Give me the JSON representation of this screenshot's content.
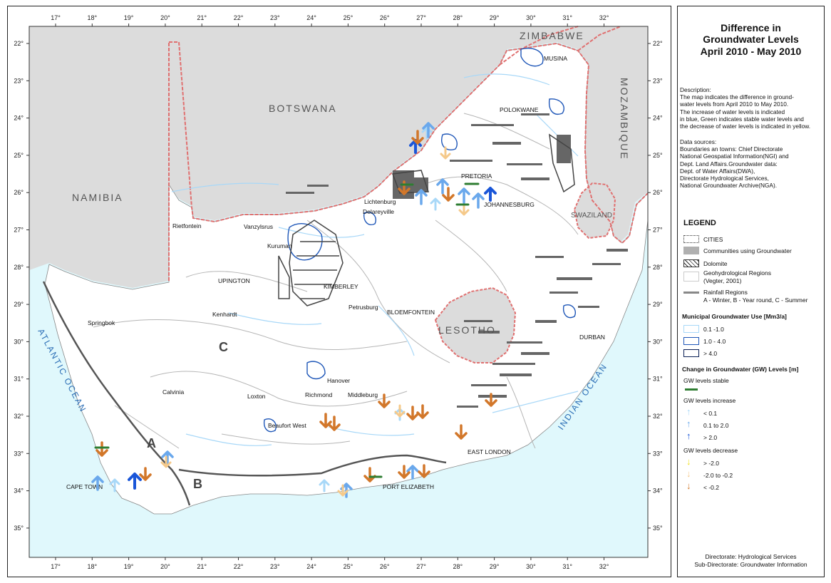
{
  "map": {
    "longitude_ticks": [
      "17°",
      "18°",
      "19°",
      "20°",
      "21°",
      "22°",
      "23°",
      "24°",
      "25°",
      "26°",
      "27°",
      "28°",
      "29°",
      "30°",
      "31°",
      "32°"
    ],
    "latitude_ticks": [
      "22°",
      "23°",
      "24°",
      "25°",
      "26°",
      "27°",
      "28°",
      "29°",
      "30°",
      "31°",
      "32°",
      "33°",
      "34°",
      "35°"
    ],
    "countries": {
      "zimbabwe": "ZIMBABWE",
      "botswana": "BOTSWANA",
      "namibia": "NAMIBIA",
      "mozambique": "MOZAMBIQUE",
      "swaziland": "SWAZILAND",
      "lesotho": "LESOTHO"
    },
    "oceans": {
      "atlantic": "ATLANTIC OCEAN",
      "indian": "INDIAN OCEAN"
    },
    "rainfall_regions": {
      "a": "A",
      "b": "B",
      "c": "C"
    },
    "cities": {
      "musina": "MUSINA",
      "polokwane": "POLOKWANE",
      "pretoria": "PRETORIA",
      "johannesburg": "JOHANNESBURG",
      "lichtenburg": "Lichtenburg",
      "delareyville": "Delareyville",
      "rietfontein": "Rietfontein",
      "vanzylsrus": "Vanzylsrus",
      "kuruman": "Kuruman",
      "upington": "UPINGTON",
      "kimberley": "KIMBERLEY",
      "petrusburg": "Petrusburg",
      "bloemfontein": "BLOEMFONTEIN",
      "kenhardt": "Kenhardt",
      "springbok": "Springbok",
      "durban": "DURBAN",
      "hanover": "Hanover",
      "calvinia": "Calvinia",
      "loxton": "Loxton",
      "richmond": "Richmond",
      "middleburg": "Middleburg",
      "beaufort_west": "Beaufort West",
      "east_london": "EAST LONDON",
      "cape_town": "CAPE TOWN",
      "port_elizabeth": "PORT ELIZABETH"
    },
    "colors": {
      "land": "#ffffff",
      "sea": "#e0f8fc",
      "neighbour": "#dcdcdc",
      "border": "#e07070",
      "increase_small": "#a8d8f8",
      "increase_mid": "#6aa8ec",
      "increase_large": "#1a56d8",
      "decrease_large": "#f0e020",
      "decrease_mid": "#f5c98a",
      "decrease_small": "#d2772a",
      "stable": "#2e7d32"
    }
  },
  "sidebar": {
    "title_1": "Difference in",
    "title_2": "Groundwater Levels",
    "title_3": "April 2010 - May 2010",
    "description": "Description:\nThe map indicates the difference in ground-\nwater levels from April 2010 to May 2010.\nThe increase of water levels is indicated\nin blue, Green indicates stable water levels and\nthe decrease of water levels is indicated in yellow.",
    "data_sources": "Data sources:\nBoundaries an towns: Chief Directorate\nNational Geospatial Information(NGI) and\nDept. Land Affairs.Groundwater data:\nDept. of Water Affairs(DWA),\nDirectorate Hydrological Services,\nNational Groundwater Archive(NGA).",
    "legend_title": "LEGEND",
    "cities": "CITIES",
    "communities": "Communities using Groundwater",
    "dolomite": "Dolomite",
    "geohydro_1": "Geohydrological Regions",
    "geohydro_2": "(Vegter, 2001)",
    "rainfall_1": "Rainfall Regions",
    "rainfall_2": "A - Winter, B - Year round, C - Summer",
    "muni_title": "Municipal Groundwater Use [Mm3/a]",
    "muni_1": "0.1 -1.0",
    "muni_2": "1.0 - 4.0",
    "muni_3": "> 4.0",
    "change_title": "Change in Groundwater (GW) Levels [m]",
    "stable": "GW levels stable",
    "increase": "GW levels increase",
    "inc_1": "< 0.1",
    "inc_2": "0.1 to 2.0",
    "inc_3": "> 2.0",
    "decrease": "GW levels decrease",
    "dec_1": "> -2.0",
    "dec_2": "-2.0 to -0.2",
    "dec_3": "< -0.2",
    "footer_1": "Directorate: Hydrological Services",
    "footer_2": "Sub-Directorate: Groundwater Information"
  }
}
